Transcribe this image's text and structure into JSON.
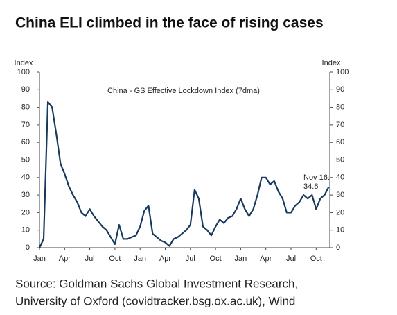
{
  "chart_data": {
    "type": "line",
    "title": "China ELI climbed in the face of rising cases",
    "subtitle": "China - GS Effective Lockdown Index (7dma)",
    "y_label": "Index",
    "y2_label": "Index",
    "annotation": "Nov 16:",
    "source": [
      "Source: Goldman Sachs Global Investment Research,",
      "University of Oxford (covidtracker.bsg.ox.ac.uk), Wind"
    ],
    "categories": [
      "Jan",
      null,
      null,
      null,
      null,
      null,
      "Apr",
      null,
      null,
      null,
      null,
      null,
      "Jul",
      null,
      null,
      null,
      null,
      null,
      "Oct",
      null,
      null,
      null,
      null,
      null,
      "Jan",
      null,
      null,
      null,
      null,
      null,
      "Apr",
      null,
      null,
      null,
      null,
      null,
      "Jul",
      null,
      null,
      null,
      null,
      null,
      "Oct",
      null,
      null,
      null,
      null,
      null,
      "Jan",
      null,
      null,
      null,
      null,
      null,
      "Apr",
      null,
      null,
      null,
      null,
      null,
      "Jul",
      null,
      null,
      null,
      null,
      null,
      "Oct",
      null,
      null,
      null
    ],
    "series": [
      {
        "name": "China - GS Effective Lockdown Index (7dma)",
        "color": "#173a5e",
        "values": [
          0,
          5,
          83,
          80,
          65,
          48,
          42,
          35,
          30,
          26,
          20,
          18,
          22,
          18,
          15,
          12,
          10,
          6,
          2,
          13,
          5,
          5,
          6,
          7,
          12,
          21,
          24,
          8,
          6,
          4,
          3,
          1,
          5,
          6,
          8,
          10,
          13,
          33,
          28,
          12,
          10,
          7,
          12,
          16,
          14,
          17,
          18,
          22,
          28,
          22,
          18,
          22,
          30,
          40,
          40,
          36,
          38,
          32,
          28,
          20,
          20,
          24,
          26,
          30,
          28,
          30,
          22,
          28,
          30,
          34.6
        ]
      }
    ],
    "annotation_color": "#e0262b",
    "ylim": [
      0,
      100
    ],
    "yticks": [
      0,
      10,
      20,
      30,
      40,
      50,
      60,
      70,
      80,
      90,
      100
    ],
    "y2lim": [
      0,
      100
    ],
    "y2ticks": [
      0,
      10,
      20,
      30,
      40,
      50,
      60,
      70,
      80,
      90,
      100
    ]
  }
}
